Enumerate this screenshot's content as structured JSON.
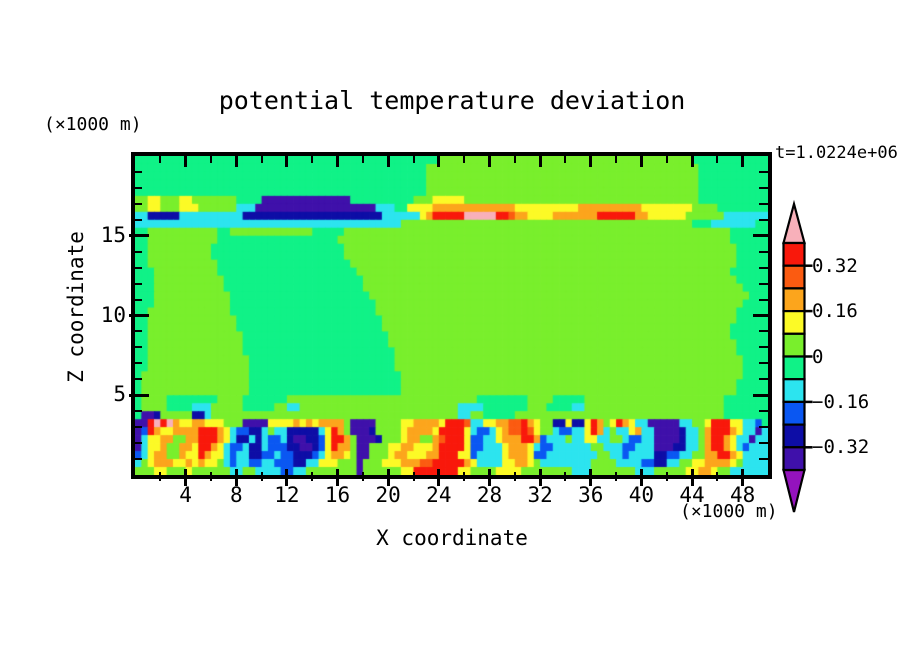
{
  "title": "potential temperature deviation",
  "time_label": "t=1.0224e+06",
  "x_axis": {
    "label": "X coordinate",
    "unit_label": "(×1000 m)",
    "range": [
      0,
      50
    ],
    "tick_labels": [
      4,
      8,
      12,
      16,
      20,
      24,
      28,
      32,
      36,
      40,
      44,
      48
    ],
    "minor_tick_step": 2
  },
  "y_axis": {
    "label": "Z coordinate",
    "unit_label": "(×1000 m)",
    "range": [
      0,
      20
    ],
    "tick_labels": [
      5,
      10,
      15
    ],
    "minor_tick_step": 1
  },
  "colorbar": {
    "tick_labels": [
      "0.32",
      "0.16",
      "0",
      "−0.16",
      "−0.32"
    ],
    "labeled_boundary_indices": [
      1,
      3,
      5,
      7,
      9
    ],
    "segment_color_keys_top_to_bottom": [
      "R",
      "D",
      "O",
      "Y",
      "G",
      "M",
      "C",
      "B",
      "N",
      "V"
    ],
    "above_max_arrow_key": "K",
    "below_min_arrow_key": "P",
    "levels_top_to_bottom": [
      0.4,
      0.32,
      0.24,
      0.16,
      0.08,
      0,
      -0.08,
      -0.16,
      -0.24,
      -0.32,
      -0.4
    ]
  },
  "chart_data": {
    "type": "heatmap",
    "title": "potential temperature deviation",
    "xlabel": "X coordinate (×1000 m)",
    "ylabel": "Z coordinate (×1000 m)",
    "time": "t=1.0224e+06",
    "x_range": [
      0,
      50
    ],
    "z_range": [
      0,
      20
    ],
    "contour_interval": 0.08,
    "legend_position": "right-arrow-colorbar",
    "palette": {
      "K": "#f8b0ba",
      "R": "#f9180b",
      "D": "#fb5b11",
      "O": "#fca51c",
      "Y": "#fcfa26",
      "G": "#79ef2c",
      "M": "#10f287",
      "C": "#2ce4ef",
      "B": "#0a57f2",
      "N": "#0d0da6",
      "V": "#3f10aa",
      "P": "#9413bd"
    },
    "palette_value_ranges": {
      "K": "> 0.40",
      "R": "0.32 to 0.40",
      "D": "0.24 to 0.32",
      "O": "0.16 to 0.24",
      "Y": "0.08 to 0.16",
      "G": "0 to 0.08",
      "M": "-0.08 to 0",
      "C": "-0.16 to -0.08",
      "B": "-0.24 to -0.16",
      "N": "-0.32 to -0.24",
      "V": "-0.40 to -0.32",
      "P": "< -0.40"
    },
    "grid_cols": 100,
    "grid_rows": 40,
    "grid_rows_top_to_bottom": [
      [
        "MMMMMMMMMM",
        "MMMMMMMMMM",
        "MMMMMMMMMM",
        "MMMMMMMMMM",
        "MMMMMMMMGG",
        "GGGGGGGGGG",
        "GGGGGGGGGG",
        "GGGGGGGGGG",
        "GGGGGGGGMM",
        "MMMMMMMMMM"
      ],
      [
        "MMMMMMMMMM",
        "MMMMMMMMMM",
        "MMMMMMMMMM",
        "MMMMMMMMMM",
        "MMMMMMGGGG",
        "GGGGGGGGGG",
        "GGGGGGGGGG",
        "GGGGGGGGGG",
        "GGGGGGGGGM",
        "MMMMMMMMMM"
      ],
      [
        "MMMMMMMMMM",
        "MMMMMMMMMM",
        "MMMMMMMMMM",
        "MMMMMMMMMM",
        "MMMMMMGGGG",
        "GGGGGGGGGG",
        "GGGGGGGGGG",
        "GGGGGGGGGG",
        "GGGGGGGGGM",
        "MMMMMMMMMM"
      ],
      [
        "MMMMMMMMMM",
        "MMMMMMMMMM",
        "MMMMMMMMMM",
        "MMMMMMMMMM",
        "MMMMMMGGGG",
        "GGGGGGGGGG",
        "GGGGGGGGGG",
        "GGGGGGGGGG",
        "GGGGGGGGGM",
        "MMMMMMMMMM"
      ],
      [
        "MMMMMMMMMM",
        "MMMMMMMMMM",
        "MMMMMMMMMM",
        "MMMMMMMMMM",
        "MMMMMMGGGG",
        "GGGGGGGGGG",
        "GGGGGGGGGG",
        "GGGGGGGGGG",
        "GGGGGGGGGM",
        "MMMMMMMMMM"
      ],
      [
        "GGYYGGGYYG",
        "GGGGGGMMMM",
        "VVVVVVVVVV",
        "VVVVMMMMMM",
        "MMMMGGGYYY",
        "YYGGGGGGGG",
        "GGGGGGGGGG",
        "GGGGGGGGGG",
        "GGGGGGGGGM",
        "MMMMMMMMMM"
      ],
      [
        "GGYYGGGYYY",
        "GGGGGGCCCV",
        "VVVVVVVVVV",
        "VVVVVVVVCC",
        "CMMYYYYOOO",
        "OOOOOOOOOO",
        "YYYYYYYYYY",
        "OOOOOOOOOO",
        "YYYYYYYYGG",
        "GGMMMMMMMM"
      ],
      [
        "CCNNNNNCCC",
        "CCCCCCCNNN",
        "NNNNNNNNNN",
        "NNNNNNNNNC",
        "CCCCCYORRR",
        "RRKKKKKRRD",
        "OOYYYYOOOO",
        "OOORRRRRRO",
        "OYYYYYYGGG",
        "GGGCCCCCCC"
      ],
      [
        "CCCCCCCCCC",
        "CCCCCCCCCC",
        "CCCCCCCCCC",
        "CCCCCCCCCC",
        "CCGGGGGGGG",
        "GGGGGGGGGG",
        "GGGGGGGGGG",
        "GGGGGGGGGG",
        "GGGGGGGGMM",
        "MCCCCCCCMM"
      ],
      [
        "MMGGGGGGGG",
        "GGGMMGGGGG",
        "GGGGGGGGMM",
        "MMMGGGGGGG",
        "GGGGGGGGGG",
        "GGGGGGGGGG",
        "GGGGGGGGGG",
        "GGGGGGGGGG",
        "GGGGGGGGGG",
        "GGGGMMMMMM"
      ],
      [
        "MMGGGGGGGG",
        "GGGMMMMMMM",
        "MMMMMMMMMM",
        "MMGGGGGGGG",
        "GGGGGGGGGG",
        "GGGGGGGGGG",
        "GGGGGGGGGG",
        "GGGGGGGGGG",
        "GGGGGGGGGG",
        "GGGGMMMMMM"
      ],
      [
        "MMGGGGGGGG",
        "GGMMMMMMMM",
        "MMMMMMMMMM",
        "MMMGGGGGGG",
        "GGGGGGGGGG",
        "GGGGGGGGGG",
        "GGGGGGGGGG",
        "GGGGGGGGGG",
        "GGGGGGGGGG",
        "GGGGGMMMMM"
      ],
      [
        "MMGGGGGGGG",
        "GGMMMMMMMM",
        "MMMMMMMMMM",
        "MMMGGGGGGG",
        "GGGGGGGGGG",
        "GGGGGGGGGG",
        "GGGGGGGGGG",
        "GGGGGGGGGG",
        "GGGGGGGGGG",
        "GGGGGMMMMM"
      ],
      [
        "MMGGGGGGGG",
        "GGGMMMMMMM",
        "MMMMMMMMMM",
        "MMMMGGGGGG",
        "GGGGGGGGGG",
        "GGGGGGGGGG",
        "GGGGGGGGGG",
        "GGGGGGGGGG",
        "GGGGGGGGGG",
        "GGGGGMMMMM"
      ],
      [
        "MMMGGGGGGG",
        "GGGMMMMMMM",
        "MMMMMMMMMM",
        "MMMMMGGGGG",
        "GGGGGGGGGG",
        "GGGGGGGGGG",
        "GGGGGGGGGG",
        "GGGGGGGGGG",
        "GGGGGGGGGG",
        "GGGGMMMMMM"
      ],
      [
        "MMMGGGGGGG",
        "GGGGMMMMMM",
        "MMMMMMMMMM",
        "MMMMMMGGGG",
        "GGGGGGGGGG",
        "GGGGGGGGGG",
        "GGGGGGGGGG",
        "GGGGGGGGGG",
        "GGGGGGGGGG",
        "GGGGGMMMMM"
      ],
      [
        "MMMGGGGGGG",
        "GGGGMMMMMM",
        "MMMMMMMMMM",
        "MMMMMMGGGG",
        "GGGGGGGGGG",
        "GGGGGGGGGG",
        "GGGGGGGGGG",
        "GGGGGGGGGG",
        "GGGGGGGGGG",
        "GGGGGGMMMM"
      ],
      [
        "MMMGGGGGGG",
        "GGGGGMMMMM",
        "MMMMMMMMMM",
        "MMMMMMMGGG",
        "GGGGGGGGGG",
        "GGGGGGGGGG",
        "GGGGGGGGGG",
        "GGGGGGGGGG",
        "GGGGGGGGGG",
        "GGGGGGGMMM"
      ],
      [
        "MMMGGGGGGG",
        "GGGGGMMMMM",
        "MMMMMMMMMM",
        "MMMMMMMMGG",
        "GGGGGGGGGG",
        "GGGGGGGGGG",
        "GGGGGGGGGG",
        "GGGGGGGGGG",
        "GGGGGGGGGG",
        "GGGGGGMMMM"
      ],
      [
        "MMGGGGGGGG",
        "GGGGGMMMMM",
        "MMMMMMMMMM",
        "MMMMMMMMGG",
        "GGGGGGGGGG",
        "GGGGGGGGGG",
        "GGGGGGGGGG",
        "GGGGGGGGGG",
        "GGGGGGGGGG",
        "GGGGGMMMMM"
      ],
      [
        "MMGGGGGGGG",
        "GGGGGGMMMM",
        "MMMMMMMMMM",
        "MMMMMMMMMG",
        "GGGGGGGGGG",
        "GGGGGGGGGG",
        "GGGGGGGGGG",
        "GGGGGGGGGG",
        "GGGGGGGGGG",
        "GGGGGMMMMM"
      ],
      [
        "MMGGGGGGGG",
        "GGGGGGMMMM",
        "MMMMMMMMMM",
        "MMMMMMMMMG",
        "GGGGGGGGGG",
        "GGGGGGGGGG",
        "GGGGGGGGGG",
        "GGGGGGGGGG",
        "GGGGGGGGGG",
        "GGGGMMMMMM"
      ],
      [
        "MMGGGGGGGG",
        "GGGGGGGMMM",
        "MMMMMMMMMM",
        "MMMMMMMMMM",
        "GGGGGGGGGG",
        "GGGGGGGGGG",
        "GGGGGGGGGG",
        "GGGGGGGGGG",
        "GGGGGGGGGG",
        "GGGGMMMMMM"
      ],
      [
        "MMGGGGGGGG",
        "GGGGGGGMMM",
        "MMMMMMMMMM",
        "MMMMMMMMMM",
        "GGGGGGGGGG",
        "GGGGGGGGGG",
        "GGGGGGGGGG",
        "GGGGGGGGGG",
        "GGGGGGGGGG",
        "GGGGGMMMMM"
      ],
      [
        "MMGGGGGGGG",
        "GGGGGGGMMM",
        "MMMMMMMMMM",
        "MMMMMMMMMM",
        "MGGGGGGGGG",
        "GGGGGGGGGG",
        "GGGGGGGGGG",
        "GGGGGGGGGG",
        "GGGGGGGGGG",
        "GGGGGMMMMM"
      ],
      [
        "MMGGGGGGGG",
        "GGGGGGGGMM",
        "MMMMMMMMMM",
        "MMMMMMMMMM",
        "MGGGGGGGGG",
        "GGGGGGGGGG",
        "GGGGGGGGGG",
        "GGGGGGGGGG",
        "GGGGGGGGGG",
        "GGGGGGMMMM"
      ],
      [
        "MMGGGGGGGG",
        "GGGGGGGGMM",
        "MMMMMMMMMM",
        "MMMMMMMMMM",
        "MGGGGGGGGG",
        "GGGGGGGGGG",
        "GGGGGGGGGG",
        "GGGGGGGGGG",
        "GGGGGGGGGG",
        "GGGGGGMMMM"
      ],
      [
        "MGGGGGGGGG",
        "GGGGGGGGMM",
        "MMMMMMMMMM",
        "MMMMMMMMMM",
        "MMGGGGGGGG",
        "GGGGGGGGGG",
        "GGGGGGGGGG",
        "GGGGGGGGGG",
        "GGGGGGGGGG",
        "GGGGGGMMMM"
      ],
      [
        "MGGGGGGGGG",
        "GGGGGGGGMM",
        "MMMMMMMMMM",
        "MMMMMMMMMM",
        "MMGGGGGGGG",
        "GGGGGGGGGG",
        "GGGGGGGGGG",
        "GGGGGGGGGG",
        "GGGGGGGGGG",
        "GGGGGMMMMM"
      ],
      [
        "MGGGGGGGGG",
        "GGGGGGGGMM",
        "MMMMMMMMMM",
        "MMMMMMMMMM",
        "MMGGGGGGGG",
        "GGGGGGGGGG",
        "GGGGGGGGGG",
        "GGGGGGGGGG",
        "GGGGGGGGGG",
        "GGGGGMMMMM"
      ],
      [
        "MGGGGMMMMM",
        "MMMGGGGMMM",
        "MMMMGGGGGG",
        "GGGGGGGGGG",
        "GGGGGGGGGG",
        "GGGGMMMMMM",
        "MMGGGGMMMM",
        "MGGGGGGGGG",
        "GGGGGGGGGG",
        "GGGMMMMMMM"
      ],
      [
        "MGGGGMMMMC",
        "CCGGGGGMMM",
        "MMGGCCGGGG",
        "GGGGGGGGGG",
        "GGGGGGGGGG",
        "GCCCCMMMMM",
        "MMGGGMMMMC",
        "CGGGGGGGGG",
        "GGGGGGGGGG",
        "GGGMMMMMMM"
      ],
      [
        "MVVNGGGGGN",
        "NCGGGGGGGG",
        "GGGGGGGGGG",
        "GGGGGGGGGG",
        "GGGGGGGGGG",
        "GCCGGMMMMM",
        "GGGGGGGGGG",
        "GGGGGGGGGG",
        "GGGGGGGGGG",
        "GGGMMMMMMM"
      ],
      [
        "VVRKRKOYYO",
        "OYYYGGGVVV",
        "VYYYYOYOYO",
        "OOOGVVVVGG",
        "GGYYOOOOYR",
        "RRDCCYYOOD",
        "DROYGGNNYN",
        "NYROGYROYC",
        "CVVVVVCCGG",
        "YRRRYYCCBM"
      ],
      [
        "VBROYYOOOO",
        "RRROYCBBNN",
        "CGCCNNNNNC",
        "YROGVVVNGG",
        "GGYOOOOYRR",
        "RRYCBBCYOD",
        "DRDYGGCBBC",
        "CYROCGCCYO",
        "CCVVVVNCCG",
        "ORRROYCCVC"
      ],
      [
        "VCYYOOGGOO",
        "RRROYCNNCN",
        "CBBCNVVNNB",
        "YRROGVVVNG",
        "GGYOOGGODR",
        "RRYBBCCYOO",
        "ORROBCCCGC",
        "CYYCCGGCBB",
        "CCVVVVNCCG",
        "ORROYCCVCC"
      ],
      [
        "VCYYOGGOOY",
        "RROYCBBCNN",
        "CBBBNNVVNB",
        "YROOGVVGGG",
        "YYOOYYYORR",
        "RRYBBCCCYO",
        "OOYCBBCCCC",
        "CCGGCCCBBC",
        "CCVVVNNCCG",
        "ORROYCBCCC"
      ],
      [
        "BCYOOGGOYY",
        "ROYYCBCCNN",
        "BBCBBNNNBC",
        "YOOYGVVGGG",
        "YOOYYYOORR",
        "RYYBCCCCYO",
        "OOYBBCCCCC",
        "CCCGGCCBCC",
        "CCNNBBCCGG",
        "OORROYCCCC"
      ],
      [
        "CGYOOOYYOY",
        "OYYGCBCCBB",
        "CCBBBNNCCY",
        "YYGGGVGGGY",
        "YYOOODDRRR",
        "RROYCCCCYY",
        "OOYGCCCCCC",
        "CCGGGGCCCC",
        "BBNNCCGGYY",
        "OOOOYGCCCC"
      ],
      [
        "GGGYYGGGYG",
        "GGGGGCCGGC",
        "CCCBBCCGGG",
        "GGGGGVGGGG",
        "GGYYRRRRRR",
        "RYYGGGGYYY",
        "YGGGGGGGGC",
        "CCGGGGGGGC",
        "CCGGGGGYYO",
        "OYGGCCCCCC"
      ]
    ]
  }
}
